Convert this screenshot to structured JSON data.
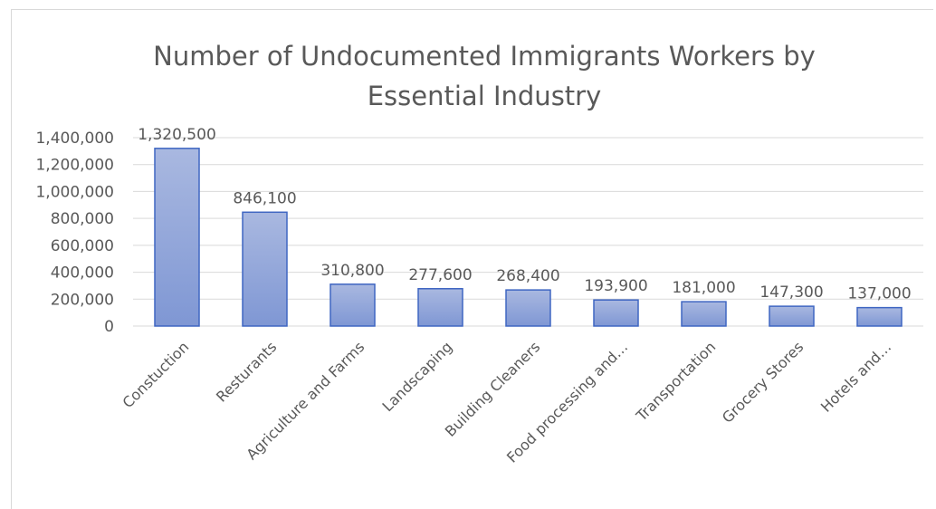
{
  "chart_data": {
    "type": "bar",
    "title_lines": [
      "Number of Undocumented Immigrants  Workers by",
      "Essential Industry"
    ],
    "categories": [
      "Constuction",
      "Resturants",
      "Agriculture and Farms",
      "Landscaping",
      "Building Cleaners",
      "Food processing and…",
      "Transportation",
      "Grocery Stores",
      "Hotels and…"
    ],
    "values": [
      1320500,
      846100,
      310800,
      277600,
      268400,
      193900,
      181000,
      147300,
      137000
    ],
    "data_labels": [
      "1,320,500",
      "846,100",
      "310,800",
      "277,600",
      "268,400",
      "193,900",
      "181,000",
      "147,300",
      "137,000"
    ],
    "y_ticks": [
      "0",
      "200,000",
      "400,000",
      "600,000",
      "800,000",
      "1,000,000",
      "1,200,000",
      "1,400,000"
    ],
    "ylim": [
      0,
      1400000
    ],
    "xlabel": "",
    "ylabel": "",
    "grid": true,
    "legend": "none",
    "colors": {
      "bar_fill_top": "#a9b8e0",
      "bar_fill_bottom": "#7f97d4",
      "bar_stroke": "#3f66c2",
      "grid": "#d9d9d9",
      "text": "#595959"
    }
  }
}
